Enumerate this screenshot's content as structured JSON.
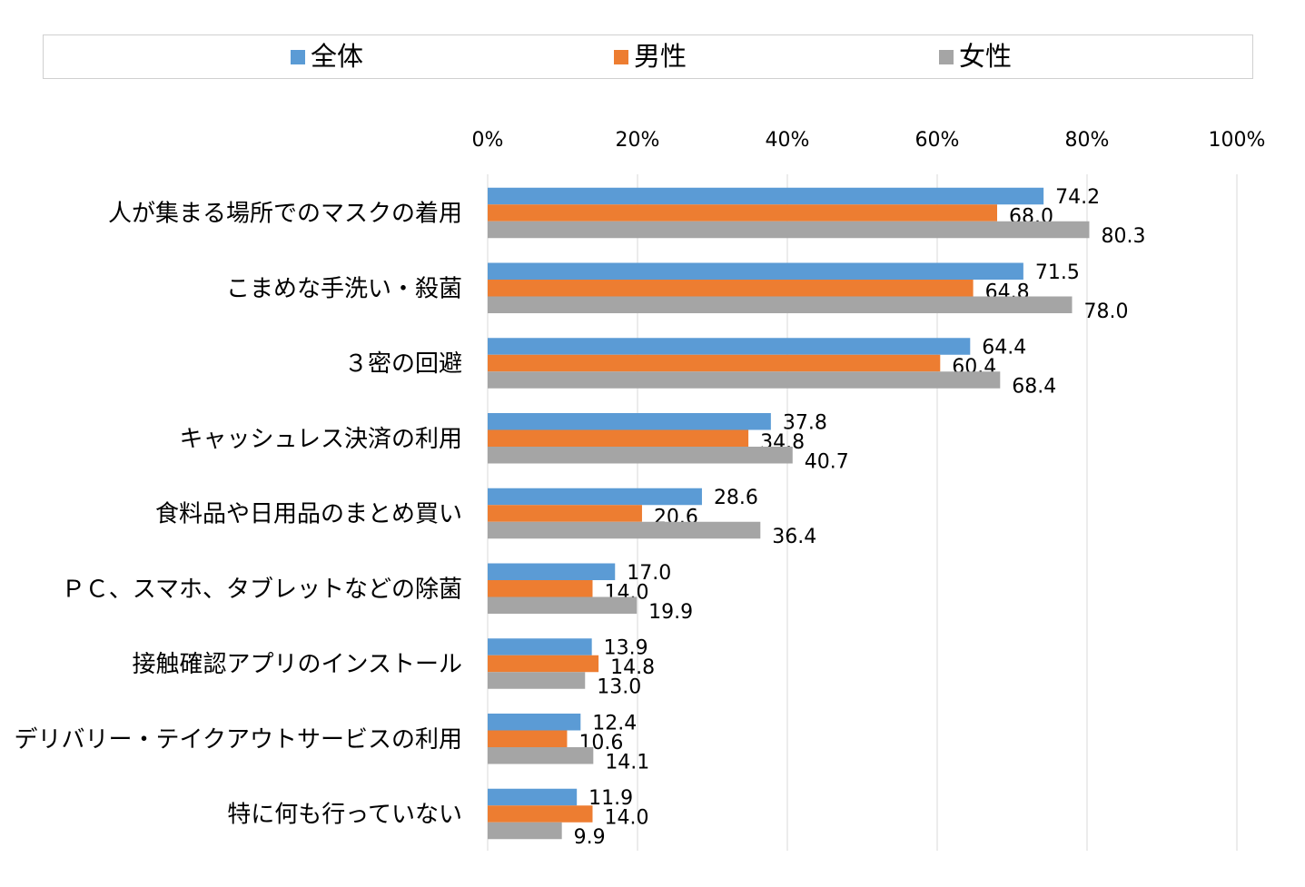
{
  "chart_data": {
    "type": "bar",
    "orientation": "horizontal",
    "legend_position": "top",
    "grid": true,
    "xlim": [
      0,
      100
    ],
    "x_ticks": [
      "0%",
      "20%",
      "40%",
      "60%",
      "80%",
      "100%"
    ],
    "categories": [
      "人が集まる場所でのマスクの着用",
      "こまめな手洗い・殺菌",
      "３密の回避",
      "キャッシュレス決済の利用",
      "食料品や日用品のまとめ買い",
      "ＰＣ、スマホ、タブレットなどの除菌",
      "接触確認アプリのインストール",
      "デリバリー・テイクアウトサービスの利用",
      "特に何も行っていない"
    ],
    "series": [
      {
        "name": "全体",
        "color": "#5b9bd5",
        "values": [
          74.2,
          71.5,
          64.4,
          37.8,
          28.6,
          17.0,
          13.9,
          12.4,
          11.9
        ],
        "labels": [
          "74.2",
          "71.5",
          "64.4",
          "37.8",
          "28.6",
          "17.0",
          "13.9",
          "12.4",
          "11.9"
        ]
      },
      {
        "name": "男性",
        "color": "#ed7d31",
        "values": [
          68.0,
          64.8,
          60.4,
          34.8,
          20.6,
          14.0,
          14.8,
          10.6,
          14.0
        ],
        "labels": [
          "68.0",
          "64.8",
          "60.4",
          "34.8",
          "20.6",
          "14.0",
          "14.8",
          "10.6",
          "14.0"
        ]
      },
      {
        "name": "女性",
        "color": "#a5a5a5",
        "values": [
          80.3,
          78.0,
          68.4,
          40.7,
          36.4,
          19.9,
          13.0,
          14.1,
          9.9
        ],
        "labels": [
          "80.3",
          "78.0",
          "68.4",
          "40.7",
          "36.4",
          "19.9",
          "13.0",
          "14.1",
          "9.9"
        ]
      }
    ]
  }
}
